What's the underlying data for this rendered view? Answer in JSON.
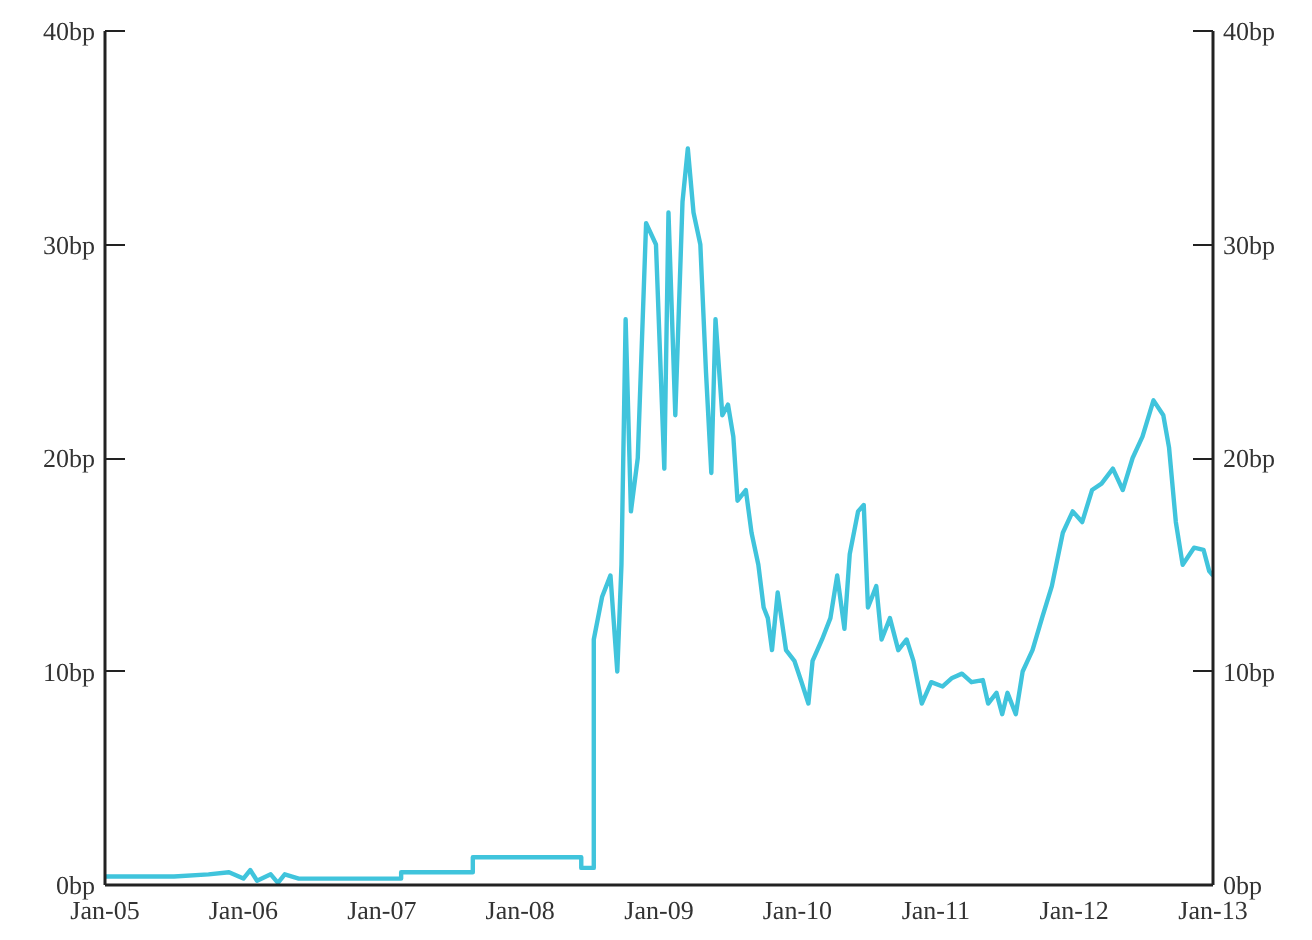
{
  "chart_data": {
    "type": "line",
    "x": [
      "2005-01-01",
      "2005-07-02",
      "2005-10-01",
      "2005-11-24",
      "2006-01-01",
      "2006-01-19",
      "2006-02-06",
      "2006-03-14",
      "2006-04-02",
      "2006-04-20",
      "2006-05-27",
      "2007-02-21",
      "2007-02-21",
      "2007-08-29",
      "2007-08-29",
      "2008-06-10",
      "2008-06-10",
      "2008-07-13",
      "2008-07-13",
      "2008-08-04",
      "2008-08-26",
      "2008-09-13",
      "2008-09-24",
      "2008-10-05",
      "2008-10-19",
      "2008-11-06",
      "2008-11-28",
      "2008-12-24",
      "2009-01-15",
      "2009-01-26",
      "2009-02-13",
      "2009-03-04",
      "2009-03-18",
      "2009-04-02",
      "2009-04-20",
      "2009-05-05",
      "2009-05-19",
      "2009-05-30",
      "2009-06-17",
      "2009-07-02",
      "2009-07-16",
      "2009-07-27",
      "2009-08-18",
      "2009-09-02",
      "2009-09-20",
      "2009-10-04",
      "2009-10-15",
      "2009-10-26",
      "2009-11-10",
      "2009-12-02",
      "2009-12-24",
      "2010-01-12",
      "2010-01-30",
      "2010-02-10",
      "2010-03-07",
      "2010-03-29",
      "2010-04-16",
      "2010-05-05",
      "2010-05-19",
      "2010-06-10",
      "2010-06-25",
      "2010-07-06",
      "2010-07-28",
      "2010-08-11",
      "2010-09-02",
      "2010-09-24",
      "2010-10-16",
      "2010-11-03",
      "2010-11-25",
      "2010-12-20",
      "2011-01-19",
      "2011-02-13",
      "2011-03-11",
      "2011-04-05",
      "2011-05-05",
      "2011-05-19",
      "2011-06-10",
      "2011-06-25",
      "2011-07-09",
      "2011-07-31",
      "2011-08-18",
      "2011-09-13",
      "2011-10-08",
      "2011-11-03",
      "2011-12-02",
      "2011-12-28",
      "2012-01-22",
      "2012-02-17",
      "2012-03-13",
      "2012-04-12",
      "2012-05-08",
      "2012-06-03",
      "2012-06-29",
      "2012-07-28",
      "2012-08-23",
      "2012-09-07",
      "2012-09-25",
      "2012-10-13",
      "2012-11-12",
      "2012-12-07",
      "2012-12-22",
      "2013-01-01"
    ],
    "series": [
      {
        "color": "#40c4dc",
        "values": [
          0.4,
          0.4,
          0.5,
          0.6,
          0.3,
          0.7,
          0.2,
          0.5,
          0.1,
          0.5,
          0.3,
          0.3,
          0.6,
          0.6,
          1.3,
          1.3,
          0.8,
          0.8,
          11.5,
          13.5,
          14.5,
          10,
          15,
          26.5,
          17.5,
          20,
          31,
          30,
          19.5,
          31.5,
          22,
          32,
          34.5,
          31.5,
          30,
          24,
          19.3,
          26.5,
          22,
          22.5,
          21,
          18,
          18.5,
          16.5,
          15,
          13,
          12.5,
          11,
          13.7,
          11,
          10.5,
          9.5,
          8.5,
          10.5,
          11.5,
          12.5,
          14.5,
          12,
          15.5,
          17.5,
          17.8,
          13,
          14,
          11.5,
          12.5,
          11,
          11.5,
          10.5,
          8.5,
          9.5,
          9.3,
          9.7,
          9.9,
          9.5,
          9.6,
          8.5,
          9,
          8,
          9,
          8,
          10,
          11,
          12.5,
          14,
          16.5,
          17.5,
          17,
          18.5,
          18.8,
          19.5,
          18.5,
          20,
          21,
          22.7,
          22,
          20.5,
          17,
          15,
          15.8,
          15.7,
          14.7,
          14.5
        ]
      }
    ],
    "xlim": [
      "2005-01-01",
      "2013-01-01"
    ],
    "ylim": [
      0,
      40
    ],
    "xticks": [
      {
        "value": "2005-01",
        "label": "Jan-05"
      },
      {
        "value": "2006-01",
        "label": "Jan-06"
      },
      {
        "value": "2007-01",
        "label": "Jan-07"
      },
      {
        "value": "2008-01",
        "label": "Jan-08"
      },
      {
        "value": "2009-01",
        "label": "Jan-09"
      },
      {
        "value": "2010-01",
        "label": "Jan-10"
      },
      {
        "value": "2011-01",
        "label": "Jan-11"
      },
      {
        "value": "2012-01",
        "label": "Jan-12"
      },
      {
        "value": "2013-01",
        "label": "Jan-13"
      }
    ],
    "yticks": [
      {
        "value": 0,
        "label": "0bp"
      },
      {
        "value": 10,
        "label": "10bp"
      },
      {
        "value": 20,
        "label": "20bp"
      },
      {
        "value": 30,
        "label": "30bp"
      },
      {
        "value": 40,
        "label": "40bp"
      }
    ],
    "y2lim": [
      0,
      40
    ],
    "y2ticks": [
      {
        "value": 0,
        "label": "0bp"
      },
      {
        "value": 10,
        "label": "10bp"
      },
      {
        "value": 20,
        "label": "20bp"
      },
      {
        "value": 30,
        "label": "30bp"
      },
      {
        "value": 40,
        "label": "40bp"
      }
    ],
    "grid": false
  }
}
